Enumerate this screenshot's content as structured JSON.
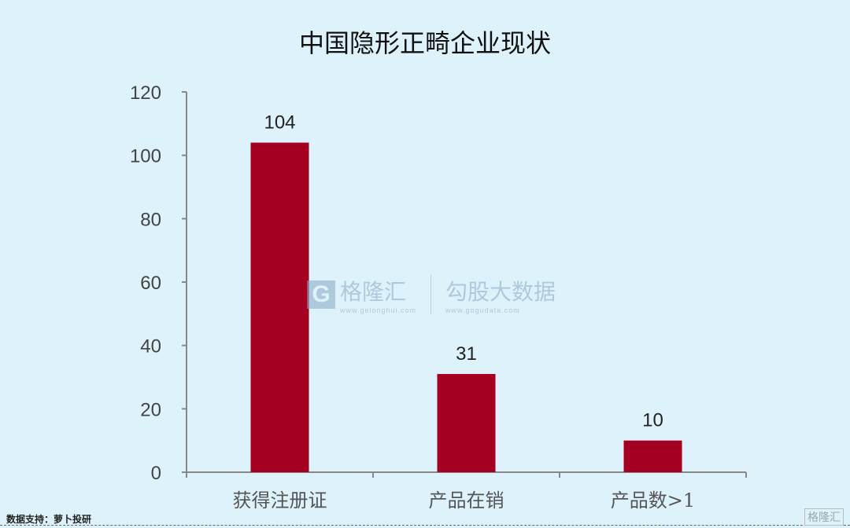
{
  "chart_data": {
    "type": "bar",
    "title": "中国隐形正畸企业现状",
    "categories": [
      "获得注册证",
      "产品在销",
      "产品数>1"
    ],
    "values": [
      104,
      31,
      10
    ],
    "data_labels": [
      "104",
      "31",
      "10"
    ],
    "ylim": [
      0,
      120
    ],
    "yticks": [
      "0",
      "20",
      "40",
      "60",
      "80",
      "100",
      "120"
    ],
    "xlabel": "",
    "ylabel": "",
    "grid": false,
    "legend": "none",
    "bar_color": "#a50021"
  },
  "footer": {
    "source": "数据支持：萝卜投研"
  },
  "watermark": {
    "logo1": "格隆汇",
    "logo1_url": "www.gelonghui.com",
    "logo2": "勾股大数据",
    "logo2_url": "www.gogudata.com",
    "corner": "格隆汇"
  }
}
